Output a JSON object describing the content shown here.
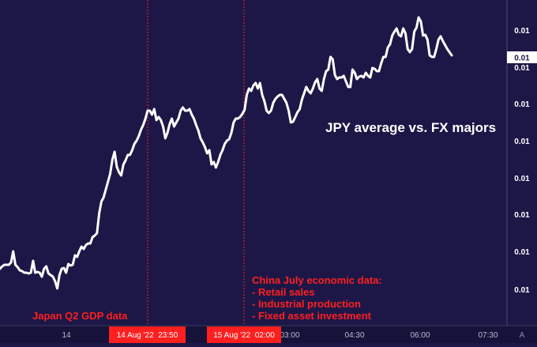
{
  "chart_data": {
    "type": "line",
    "title": "JPY average vs. FX majors",
    "price_label": "0.01",
    "y_tick_labels": [
      "0.01",
      "0.01",
      "0.01",
      "0.01",
      "0.01",
      "0.01",
      "0.01",
      "0.01"
    ],
    "x_tick_labels": [
      "14",
      "03:00",
      "04:30",
      "06:00",
      "07:30"
    ],
    "axis_mode_label": "A",
    "event_markers": [
      {
        "label": "14 Aug '22  23:50",
        "annotation": [
          "Japan Q2 GDP data"
        ]
      },
      {
        "label": "15 Aug '22  02:00",
        "annotation": [
          "China July economic data:",
          "- Retail sales",
          "- Industrial production",
          "- Fixed asset investment"
        ]
      }
    ],
    "series": [
      {
        "values": [
          340,
          337,
          335,
          335,
          335,
          332,
          318,
          335,
          338,
          342,
          343,
          345,
          345,
          346,
          345,
          330,
          345,
          344,
          345,
          350,
          340,
          337,
          346,
          348,
          350,
          356,
          365,
          348,
          340,
          339,
          345,
          334,
          336,
          335,
          323,
          325,
          318,
          312,
          315,
          310,
          308,
          308,
          300,
          298,
          295,
          270,
          255,
          250,
          240,
          230,
          220,
          202,
          192,
          211,
          218,
          222,
          208,
          203,
          196,
          196,
          190,
          182,
          178,
          172,
          164,
          158,
          150,
          140,
          140,
          145,
          138,
          152,
          148,
          152,
          160,
          175,
          168,
          157,
          150,
          160,
          155,
          150,
          140,
          136,
          140,
          140,
          138,
          145,
          150,
          158,
          165,
          175,
          180,
          186,
          194,
          190,
          208,
          205,
          212,
          205,
          196,
          190,
          182,
          178,
          176,
          168,
          155,
          150,
          150,
          148,
          144,
          139,
          120,
          112,
          115,
          108,
          105,
          112,
          105,
          120,
          128,
          140,
          143,
          140,
          130,
          125,
          122,
          120,
          120,
          125,
          130,
          140,
          155,
          154,
          148,
          142,
          138,
          126,
          118,
          110,
          115,
          118,
          112,
          104,
          100,
          112,
          115,
          100,
          90,
          88,
          72,
          75,
          95,
          100,
          98,
          98,
          96,
          103,
          110,
          110,
          88,
          92,
          100,
          97,
          96,
          98,
          92,
          96,
          98,
          86,
          87,
          90,
          90,
          80,
          72,
          72,
          60,
          56,
          45,
          40,
          36,
          44,
          46,
          36,
          42,
          62,
          66,
          62,
          40,
          35,
          22,
          27,
          45,
          44,
          50,
          70,
          72,
          72,
          62,
          50,
          46,
          52,
          57,
          62,
          66,
          70
        ]
      }
    ]
  }
}
